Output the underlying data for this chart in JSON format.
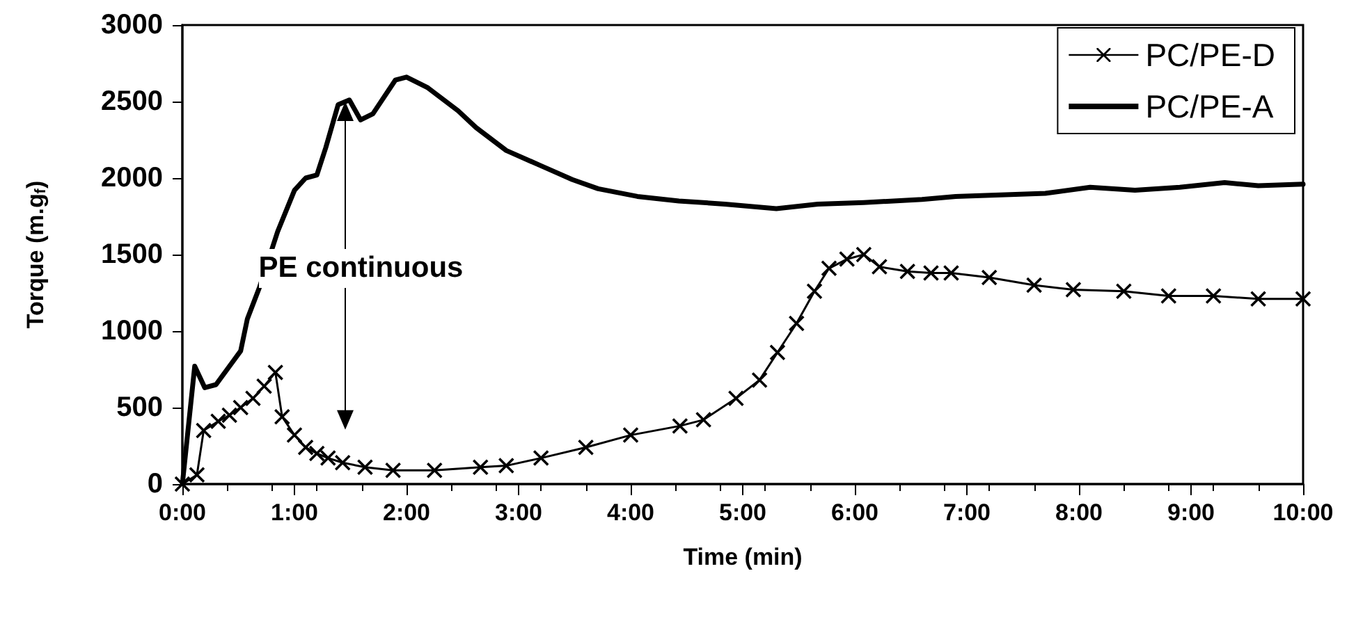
{
  "chart_data": {
    "type": "line",
    "xlabel": "Time (min)",
    "ylabel": "Torque (m.g$_{f}$)",
    "xlim": [
      0,
      10
    ],
    "ylim": [
      0,
      3000
    ],
    "xticks": [
      {
        "value": 0,
        "label": "0:00"
      },
      {
        "value": 1,
        "label": "1:00"
      },
      {
        "value": 2,
        "label": "2:00"
      },
      {
        "value": 3,
        "label": "3:00"
      },
      {
        "value": 4,
        "label": "4:00"
      },
      {
        "value": 5,
        "label": "5:00"
      },
      {
        "value": 6,
        "label": "6:00"
      },
      {
        "value": 7,
        "label": "7:00"
      },
      {
        "value": 8,
        "label": "8:00"
      },
      {
        "value": 9,
        "label": "9:00"
      },
      {
        "value": 10,
        "label": "10:00"
      }
    ],
    "yticks": [
      0,
      500,
      1000,
      1500,
      2000,
      2500,
      3000
    ],
    "grid": false,
    "legend": "top right",
    "annotations": [
      "PE continuous"
    ],
    "series": [
      {
        "name": "PC/PE-D",
        "color": "#000000",
        "marker": "cross",
        "x": [
          0,
          0.13,
          0.19,
          0.32,
          0.42,
          0.52,
          0.63,
          0.73,
          0.83,
          0.89,
          1.0,
          1.1,
          1.2,
          1.3,
          1.43,
          1.63,
          1.88,
          2.25,
          2.66,
          2.89,
          3.2,
          3.6,
          4.0,
          4.44,
          4.65,
          4.94,
          5.15,
          5.31,
          5.48,
          5.64,
          5.77,
          5.93,
          6.08,
          6.22,
          6.47,
          6.68,
          6.86,
          7.2,
          7.6,
          7.95,
          8.4,
          8.8,
          9.2,
          9.6,
          10
        ],
        "values": [
          0,
          60,
          350,
          410,
          450,
          500,
          560,
          640,
          730,
          440,
          320,
          240,
          200,
          170,
          140,
          110,
          90,
          90,
          110,
          120,
          170,
          240,
          320,
          380,
          420,
          560,
          680,
          860,
          1050,
          1260,
          1410,
          1470,
          1500,
          1420,
          1390,
          1380,
          1380,
          1350,
          1300,
          1270,
          1260,
          1230,
          1230,
          1210,
          1210
        ]
      },
      {
        "name": "PC/PE-A",
        "color": "#000000",
        "marker": "none",
        "x": [
          0,
          0.11,
          0.2,
          0.3,
          0.52,
          0.58,
          0.69,
          0.85,
          1.0,
          1.1,
          1.2,
          1.28,
          1.39,
          1.49,
          1.59,
          1.7,
          1.9,
          2.0,
          2.19,
          2.46,
          2.62,
          2.89,
          3.2,
          3.48,
          3.71,
          4.06,
          4.43,
          4.84,
          5.3,
          5.67,
          6.08,
          6.6,
          6.9,
          7.7,
          8.1,
          8.5,
          8.9,
          9.3,
          9.6,
          10
        ],
        "values": [
          0,
          770,
          630,
          650,
          870,
          1080,
          1290,
          1650,
          1920,
          2000,
          2020,
          2200,
          2480,
          2510,
          2380,
          2420,
          2640,
          2660,
          2590,
          2440,
          2330,
          2180,
          2080,
          1990,
          1930,
          1880,
          1850,
          1830,
          1800,
          1830,
          1840,
          1860,
          1880,
          1900,
          1940,
          1920,
          1940,
          1970,
          1950,
          1960
        ]
      }
    ]
  }
}
